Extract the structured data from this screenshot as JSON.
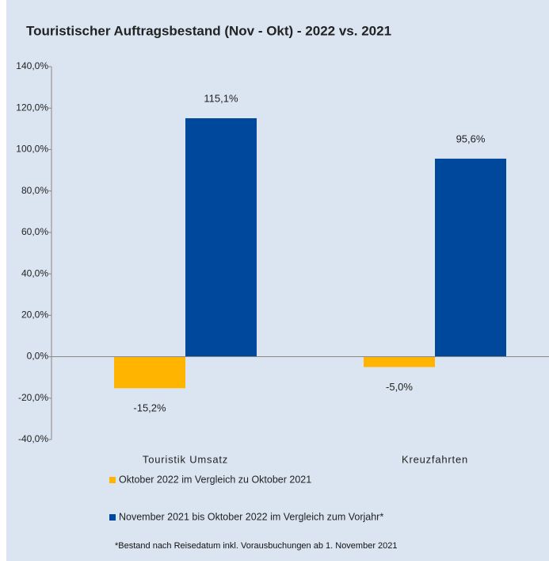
{
  "chart_data": {
    "type": "bar",
    "title": "Touristischer Auftragsbestand (Nov - Okt) - 2022 vs. 2021",
    "categories": [
      "Touristik Umsatz",
      "Kreuzfahrten"
    ],
    "series": [
      {
        "name": "Oktober 2022 im Vergleich zu Oktober 2021",
        "color": "#ffb500",
        "values": [
          -15.2,
          -5.0
        ],
        "value_labels": [
          "-15,2%",
          "-5,0%"
        ]
      },
      {
        "name": "November 2021 bis Oktober 2022 im Vergleich zum Vorjahr*",
        "color": "#00489b",
        "values": [
          115.1,
          95.6
        ],
        "value_labels": [
          "115,1%",
          "95,6%"
        ]
      }
    ],
    "ylim": [
      -40,
      140
    ],
    "yticks": [
      {
        "value": -40,
        "label": "-40,0%"
      },
      {
        "value": -20,
        "label": "-20,0%"
      },
      {
        "value": 0,
        "label": "0,0%"
      },
      {
        "value": 20,
        "label": "20,0%"
      },
      {
        "value": 40,
        "label": "40,0%"
      },
      {
        "value": 60,
        "label": "60,0%"
      },
      {
        "value": 80,
        "label": "80,0%"
      },
      {
        "value": 100,
        "label": "100,0%"
      },
      {
        "value": 120,
        "label": "120,0%"
      },
      {
        "value": 140,
        "label": "140,0%"
      }
    ],
    "grid": false,
    "legend": "bottom",
    "note": "*Bestand nach Reisedatum inkl. Vorausbuchungen ab 1. November 2021"
  }
}
